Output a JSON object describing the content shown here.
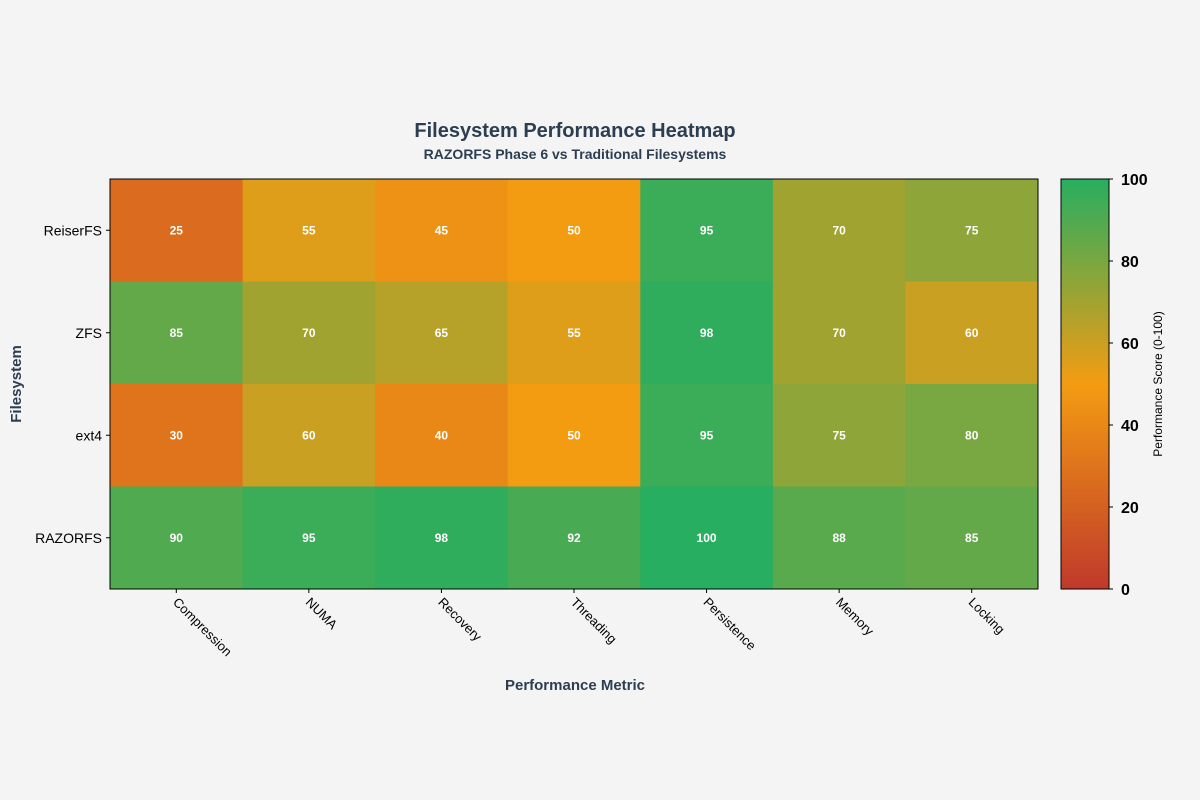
{
  "chart_data": {
    "type": "heatmap",
    "title": "Filesystem Performance Heatmap",
    "subtitle": "RAZORFS Phase 6 vs Traditional Filesystems",
    "xlabel": "Performance Metric",
    "ylabel": "Filesystem",
    "columns": [
      "Compression",
      "NUMA",
      "Recovery",
      "Threading",
      "Persistence",
      "Memory",
      "Locking"
    ],
    "rows": [
      "ReiserFS",
      "ZFS",
      "ext4",
      "RAZORFS"
    ],
    "values": [
      [
        25,
        55,
        45,
        50,
        95,
        70,
        75
      ],
      [
        85,
        70,
        65,
        55,
        98,
        70,
        60
      ],
      [
        30,
        60,
        40,
        50,
        95,
        75,
        80
      ],
      [
        90,
        95,
        98,
        92,
        100,
        88,
        85
      ]
    ],
    "colorbar": {
      "label": "Performance Score (0-100)",
      "range": [
        0,
        100
      ],
      "ticks": [
        0,
        20,
        40,
        60,
        80,
        100
      ],
      "colors": [
        "#c0392b",
        "#f39c12",
        "#27ae60"
      ]
    }
  }
}
